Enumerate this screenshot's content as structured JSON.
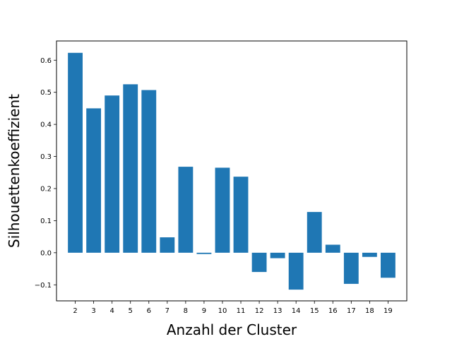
{
  "chart_data": {
    "type": "bar",
    "categories": [
      "2",
      "3",
      "4",
      "5",
      "6",
      "7",
      "8",
      "9",
      "10",
      "11",
      "12",
      "13",
      "14",
      "15",
      "16",
      "17",
      "18",
      "19"
    ],
    "values": [
      0.623,
      0.45,
      0.49,
      0.525,
      0.507,
      0.048,
      0.268,
      -0.004,
      0.265,
      0.237,
      -0.06,
      -0.017,
      -0.115,
      0.127,
      0.025,
      -0.097,
      -0.013,
      -0.078
    ],
    "title": "",
    "xlabel": "Anzahl der Cluster",
    "ylabel": "Silhouettenkoeffizient",
    "ylim": [
      -0.15,
      0.66
    ],
    "yticks": [
      -0.1,
      0.0,
      0.1,
      0.2,
      0.3,
      0.4,
      0.5,
      0.6
    ],
    "ytick_labels": [
      "−0.1",
      "0.0",
      "0.1",
      "0.2",
      "0.3",
      "0.4",
      "0.5",
      "0.6"
    ],
    "grid": false,
    "bar_color": "#1f77b4"
  }
}
